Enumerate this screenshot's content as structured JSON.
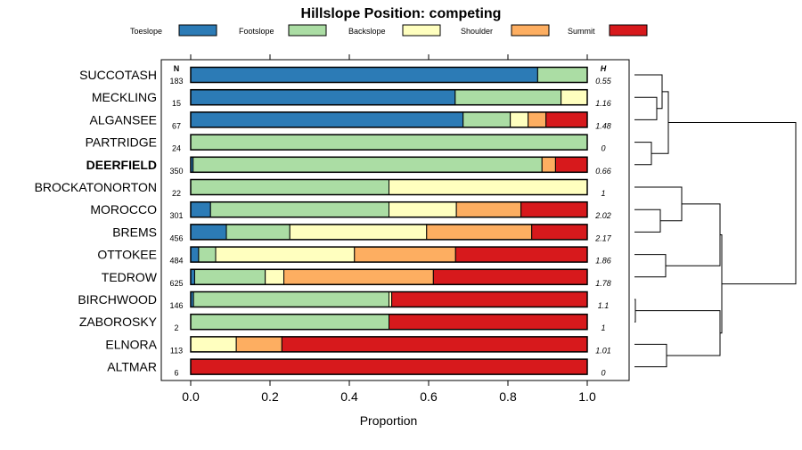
{
  "chart_data": {
    "type": "stacked_bar_horizontal",
    "title": "Hillslope Position: competing",
    "xlabel": "Proportion",
    "xlim": [
      0,
      1
    ],
    "xticks": [
      "0.0",
      "0.2",
      "0.4",
      "0.6",
      "0.8",
      "1.0"
    ],
    "n_header": "N",
    "h_header": "H",
    "legend": [
      {
        "name": "Toeslope",
        "color": "#2c7bb6"
      },
      {
        "name": "Footslope",
        "color": "#abdda4"
      },
      {
        "name": "Backslope",
        "color": "#ffffbf"
      },
      {
        "name": "Shoulder",
        "color": "#fdae61"
      },
      {
        "name": "Summit",
        "color": "#d7191c"
      }
    ],
    "rows": [
      {
        "name": "SUCCOTASH",
        "n": "183",
        "h": "0.55",
        "bold": false,
        "values": [
          0.875,
          0.125,
          0,
          0,
          0
        ]
      },
      {
        "name": "MECKLING",
        "n": "15",
        "h": "1.16",
        "bold": false,
        "values": [
          0.667,
          0.267,
          0.066,
          0,
          0
        ]
      },
      {
        "name": "ALGANSEE",
        "n": "67",
        "h": "1.48",
        "bold": false,
        "values": [
          0.687,
          0.119,
          0.045,
          0.045,
          0.104
        ]
      },
      {
        "name": "PARTRIDGE",
        "n": "24",
        "h": "0",
        "bold": false,
        "values": [
          0,
          1,
          0,
          0,
          0
        ]
      },
      {
        "name": "DEERFIELD",
        "n": "350",
        "h": "0.66",
        "bold": true,
        "values": [
          0.006,
          0.88,
          0,
          0.034,
          0.08
        ]
      },
      {
        "name": "BROCKATONORTON",
        "n": "22",
        "h": "1",
        "bold": false,
        "values": [
          0,
          0.5,
          0.5,
          0,
          0
        ]
      },
      {
        "name": "MOROCCO",
        "n": "301",
        "h": "2.02",
        "bold": false,
        "values": [
          0.05,
          0.45,
          0.17,
          0.163,
          0.167
        ]
      },
      {
        "name": "BREMS",
        "n": "456",
        "h": "2.17",
        "bold": false,
        "values": [
          0.09,
          0.16,
          0.345,
          0.265,
          0.14
        ]
      },
      {
        "name": "OTTOKEE",
        "n": "484",
        "h": "1.86",
        "bold": false,
        "values": [
          0.02,
          0.043,
          0.35,
          0.255,
          0.332
        ]
      },
      {
        "name": "TEDROW",
        "n": "625",
        "h": "1.78",
        "bold": false,
        "values": [
          0.01,
          0.178,
          0.047,
          0.377,
          0.388
        ]
      },
      {
        "name": "BIRCHWOOD",
        "n": "146",
        "h": "1.1",
        "bold": false,
        "values": [
          0.007,
          0.493,
          0.007,
          0,
          0.493
        ]
      },
      {
        "name": "ZABOROSKY",
        "n": "2",
        "h": "1",
        "bold": false,
        "values": [
          0,
          0.5,
          0,
          0,
          0.5
        ]
      },
      {
        "name": "ELNORA",
        "n": "113",
        "h": "1.01",
        "bold": false,
        "values": [
          0,
          0,
          0.115,
          0.115,
          0.77
        ]
      },
      {
        "name": "ALTMAR",
        "n": "6",
        "h": "0",
        "bold": false,
        "values": [
          0,
          0,
          0,
          0,
          1
        ]
      }
    ],
    "dendrogram": {
      "tree": [
        "root",
        [
          [
            "SUCCOTASH",
            [
              "MECKLING",
              "ALGANSEE"
            ]
          ],
          [
            "PARTRIDGE",
            "DEERFIELD"
          ]
        ],
        [
          [
            [
              "BROCKATONORTON",
              [
                "MOROCCO",
                "BREMS"
              ]
            ],
            [
              "OTTOKEE",
              "TEDROW"
            ]
          ],
          [
            [
              "BIRCHWOOD",
              "ZABOROSKY"
            ],
            [
              "ELNORA",
              "ALTMAR"
            ]
          ]
        ]
      ],
      "heights": {
        "root": 1.0,
        "a": 0.0,
        "b": 0.0
      }
    }
  }
}
